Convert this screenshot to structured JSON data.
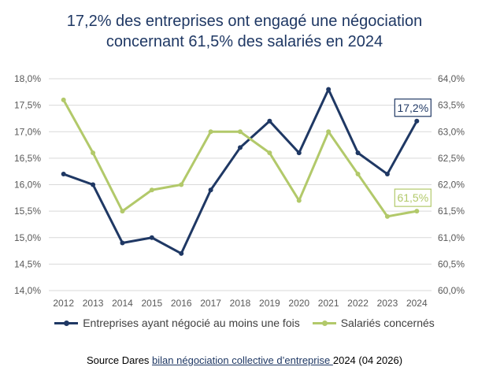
{
  "title_line1": "17,2% des entreprises ont engagé une négociation",
  "title_line2": "concernant 61,5% des salariés en 2024",
  "colors": {
    "series1": "#1f3864",
    "series2": "#b2c96a",
    "grid": "#d9d9d9",
    "axis_text": "#595959"
  },
  "chart_data": {
    "type": "line",
    "categories": [
      "2012",
      "2013",
      "2014",
      "2015",
      "2016",
      "2017",
      "2018",
      "2019",
      "2020",
      "2021",
      "2022",
      "2023",
      "2024"
    ],
    "series": [
      {
        "name": "Entreprises ayant négocié au moins une fois",
        "axis": "left",
        "values": [
          16.2,
          16.0,
          14.9,
          15.0,
          14.7,
          15.9,
          16.7,
          17.2,
          16.6,
          17.8,
          16.6,
          16.2,
          17.2
        ]
      },
      {
        "name": "Salariés concernés",
        "axis": "right",
        "values": [
          63.6,
          62.6,
          61.5,
          61.9,
          62.0,
          63.0,
          63.0,
          62.6,
          61.7,
          63.0,
          62.2,
          61.4,
          61.5
        ]
      }
    ],
    "y_left": {
      "min": 14.0,
      "max": 18.0,
      "step": 0.5,
      "tick_labels": [
        "14,0%",
        "14,5%",
        "15,0%",
        "15,5%",
        "16,0%",
        "16,5%",
        "17,0%",
        "17,5%",
        "18,0%"
      ]
    },
    "y_right": {
      "min": 60.0,
      "max": 64.0,
      "step": 0.5,
      "tick_labels": [
        "60,0%",
        "60,5%",
        "61,0%",
        "61,5%",
        "62,0%",
        "62,5%",
        "63,0%",
        "63,5%",
        "64,0%"
      ]
    },
    "annotations": [
      {
        "series": 0,
        "category": "2024",
        "text": "17,2%"
      },
      {
        "series": 1,
        "category": "2024",
        "text": "61,5%"
      }
    ],
    "grid": true,
    "legend_position": "bottom"
  },
  "legend": {
    "item1": "Entreprises ayant négocié au moins une fois",
    "item2": "Salariés concernés"
  },
  "source": {
    "prefix": "Source Dares ",
    "link_text": "bilan négociation collective d’entreprise ",
    "suffix": "2024 (04 2026)"
  }
}
